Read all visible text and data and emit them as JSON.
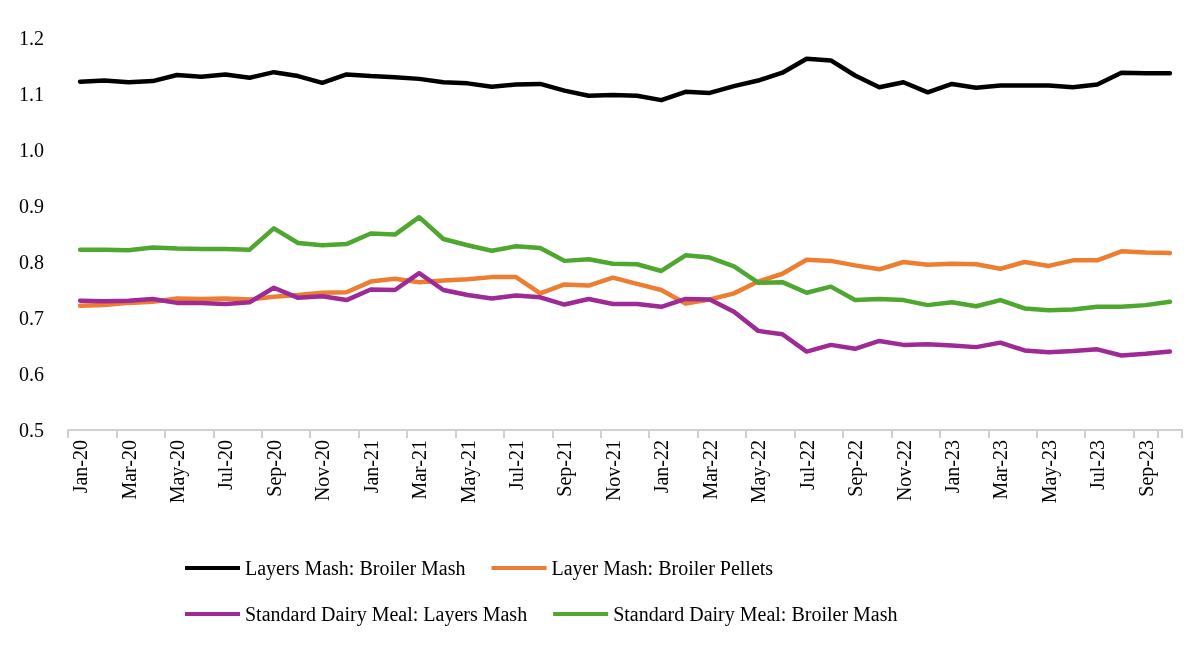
{
  "chart_data": {
    "type": "line",
    "categories": [
      "Jan-20",
      null,
      "Mar-20",
      null,
      "May-20",
      null,
      "Jul-20",
      null,
      "Sep-20",
      null,
      "Nov-20",
      null,
      "Jan-21",
      null,
      "Mar-21",
      null,
      "May-21",
      null,
      "Jul-21",
      null,
      "Sep-21",
      null,
      "Nov-21",
      null,
      "Jan-22",
      null,
      "Mar-22",
      null,
      "May-22",
      null,
      "Jul-22",
      null,
      "Sep-22",
      null,
      "Nov-22",
      null,
      "Jan-23",
      null,
      "Mar-23",
      null,
      "May-23",
      null,
      "Jul-23",
      null,
      "Sep-23",
      null
    ],
    "series": [
      {
        "name": "Layers Mash: Broiler Mash",
        "color": "#000000",
        "values": [
          1.122,
          1.124,
          1.121,
          1.123,
          1.134,
          1.131,
          1.135,
          1.129,
          1.139,
          1.132,
          1.12,
          1.135,
          1.132,
          1.13,
          1.127,
          1.121,
          1.119,
          1.113,
          1.117,
          1.118,
          1.106,
          1.097,
          1.098,
          1.097,
          1.089,
          1.104,
          1.102,
          1.114,
          1.124,
          1.138,
          1.163,
          1.16,
          1.133,
          1.112,
          1.121,
          1.103,
          1.118,
          1.111,
          1.115,
          1.115,
          1.115,
          1.112,
          1.117,
          1.138,
          1.137,
          1.137
        ]
      },
      {
        "name": "Layer Mash: Broiler Pellets",
        "color": "#ed7d31",
        "values": [
          0.722,
          0.723,
          0.727,
          0.729,
          0.735,
          0.734,
          0.735,
          0.733,
          0.738,
          0.741,
          0.745,
          0.746,
          0.765,
          0.77,
          0.764,
          0.767,
          0.769,
          0.773,
          0.773,
          0.744,
          0.76,
          0.758,
          0.772,
          0.761,
          0.75,
          0.726,
          0.733,
          0.744,
          0.765,
          0.779,
          0.804,
          0.802,
          0.794,
          0.787,
          0.8,
          0.795,
          0.797,
          0.796,
          0.788,
          0.8,
          0.793,
          0.803,
          0.803,
          0.819,
          0.817,
          0.816
        ]
      },
      {
        "name": "Standard Dairy Meal: Layers Mash",
        "color": "#9e2a96",
        "values": [
          0.731,
          0.73,
          0.731,
          0.734,
          0.727,
          0.727,
          0.725,
          0.728,
          0.754,
          0.736,
          0.739,
          0.732,
          0.751,
          0.75,
          0.78,
          0.75,
          0.741,
          0.735,
          0.74,
          0.737,
          0.724,
          0.734,
          0.725,
          0.725,
          0.72,
          0.734,
          0.733,
          0.711,
          0.677,
          0.671,
          0.64,
          0.652,
          0.645,
          0.659,
          0.652,
          0.653,
          0.651,
          0.648,
          0.656,
          0.642,
          0.639,
          0.641,
          0.644,
          0.633,
          0.636,
          0.64
        ]
      },
      {
        "name": "Standard Dairy Meal: Broiler Mash",
        "color": "#4ea72e",
        "values": [
          0.822,
          0.822,
          0.821,
          0.826,
          0.824,
          0.823,
          0.823,
          0.822,
          0.86,
          0.834,
          0.83,
          0.832,
          0.851,
          0.849,
          0.88,
          0.841,
          0.83,
          0.82,
          0.828,
          0.825,
          0.802,
          0.805,
          0.797,
          0.796,
          0.784,
          0.812,
          0.808,
          0.792,
          0.763,
          0.764,
          0.745,
          0.756,
          0.732,
          0.734,
          0.732,
          0.723,
          0.728,
          0.721,
          0.732,
          0.717,
          0.714,
          0.715,
          0.72,
          0.72,
          0.723,
          0.729
        ]
      }
    ],
    "ylim": [
      0.5,
      1.2
    ],
    "yticks": [
      0.5,
      0.6,
      0.7,
      0.8,
      0.9,
      {
        "value": 1,
        "label": "1.0"
      },
      1.1,
      1.2
    ],
    "grid": false,
    "legend": "bottom",
    "marker": "none",
    "line_style": "solid"
  }
}
